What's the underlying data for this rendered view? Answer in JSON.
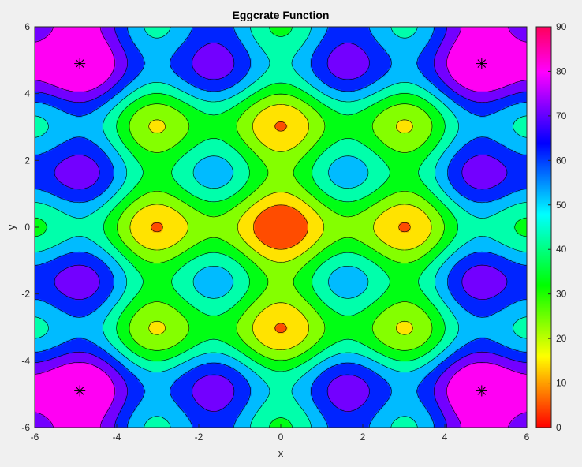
{
  "chart_data": {
    "type": "contour",
    "title": "Eggcrate Function",
    "xlabel": "x",
    "ylabel": "y",
    "function": "x^2 + y^2 + 25*(sin(x)^2 + sin(y)^2)",
    "xlim": [
      -6,
      6
    ],
    "ylim": [
      -6,
      6
    ],
    "xticks": [
      "-6",
      "-4",
      "-2",
      "0",
      "2",
      "4",
      "6"
    ],
    "yticks": [
      "-6",
      "-4",
      "-2",
      "0",
      "2",
      "4",
      "6"
    ],
    "levels": [
      0,
      10,
      20,
      30,
      40,
      50,
      60,
      70,
      80,
      90
    ],
    "colormap": "hsv",
    "colorbar": {
      "range": [
        0,
        90
      ],
      "ticks": [
        "0",
        "10",
        "20",
        "30",
        "40",
        "50",
        "60",
        "70",
        "80",
        "90"
      ]
    },
    "markers": [
      {
        "x": -4.9,
        "y": 4.9
      },
      {
        "x": 4.9,
        "y": 4.9
      },
      {
        "x": -4.9,
        "y": -4.9
      },
      {
        "x": 4.9,
        "y": -4.9
      }
    ],
    "marker_symbol": "asterisk"
  }
}
